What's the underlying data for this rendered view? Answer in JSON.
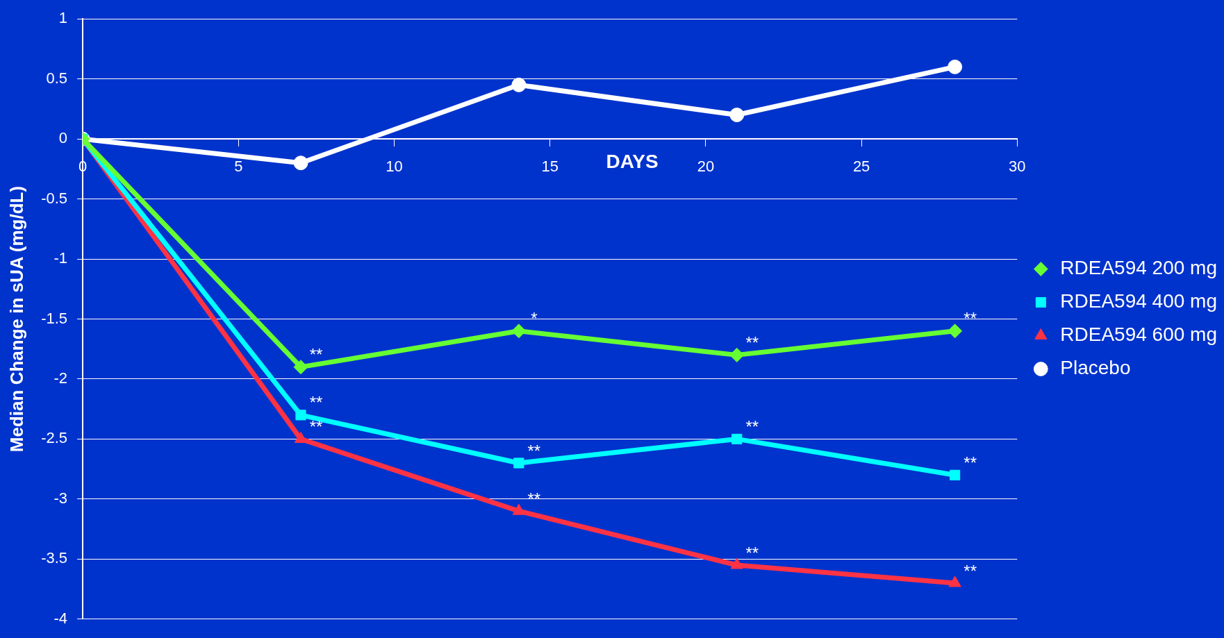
{
  "chart_data": {
    "type": "line",
    "xlabel": "DAYS",
    "ylabel": "Median Change in sUA (mg/dL)",
    "xlim": [
      0,
      30
    ],
    "xticks": [
      0,
      5,
      10,
      15,
      20,
      25,
      30
    ],
    "ylim": [
      -4,
      1
    ],
    "yticks": [
      -4,
      -3.5,
      -3,
      -2.5,
      -2,
      -1.5,
      -1,
      -0.5,
      0,
      0.5,
      1
    ],
    "grid": "y",
    "legend": "right",
    "line_style": "solid",
    "series": [
      {
        "name": "RDEA594 200 mg",
        "color": "#66ff33",
        "marker": "diamond",
        "x": [
          0,
          7,
          14,
          21,
          28
        ],
        "values": [
          0,
          -1.9,
          -1.6,
          -1.8,
          -1.6
        ]
      },
      {
        "name": "RDEA594 400 mg",
        "color": "#00ffff",
        "marker": "square",
        "x": [
          0,
          7,
          14,
          21,
          28
        ],
        "values": [
          0,
          -2.3,
          -2.7,
          -2.5,
          -2.8
        ]
      },
      {
        "name": "RDEA594 600 mg",
        "color": "#ff3344",
        "marker": "triangle",
        "x": [
          0,
          7,
          14,
          21,
          28
        ],
        "values": [
          0,
          -2.5,
          -3.1,
          -3.55,
          -3.7
        ]
      },
      {
        "name": "Placebo",
        "color": "#ffffff",
        "marker": "circle",
        "x": [
          0,
          7,
          14,
          21,
          28
        ],
        "values": [
          0,
          -0.2,
          0.45,
          0.2,
          0.6
        ]
      }
    ],
    "annotations": [
      {
        "text": "**",
        "x": 7,
        "y": -1.9
      },
      {
        "text": "*",
        "x": 14,
        "y": -1.6
      },
      {
        "text": "**",
        "x": 21,
        "y": -1.8
      },
      {
        "text": "**",
        "x": 28,
        "y": -1.6
      },
      {
        "text": "**",
        "x": 7,
        "y": -2.3
      },
      {
        "text": "**",
        "x": 14,
        "y": -2.7
      },
      {
        "text": "**",
        "x": 21,
        "y": -2.5
      },
      {
        "text": "**",
        "x": 28,
        "y": -2.8
      },
      {
        "text": "**",
        "x": 7,
        "y": -2.5
      },
      {
        "text": "**",
        "x": 14,
        "y": -3.1
      },
      {
        "text": "**",
        "x": 21,
        "y": -3.55
      },
      {
        "text": "**",
        "x": 28,
        "y": -3.7
      }
    ]
  }
}
